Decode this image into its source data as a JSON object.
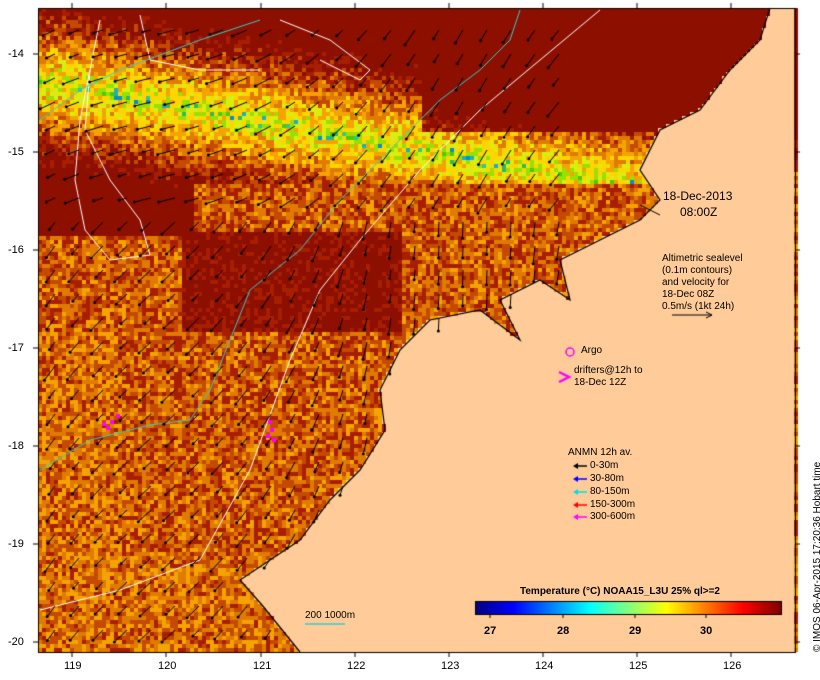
{
  "map": {
    "lon_ticks": [
      "119",
      "120",
      "121",
      "122",
      "123",
      "124",
      "125",
      "126"
    ],
    "lat_ticks": [
      "-14",
      "-15",
      "-16",
      "-17",
      "-18",
      "-19",
      "-20"
    ]
  },
  "timestamp": {
    "date": "18-Dec-2013",
    "time": "08:00Z"
  },
  "altimetry_note": {
    "lines": [
      "Altimetric sealevel",
      "(0.1m contours)",
      "and velocity for",
      "18-Dec 08Z",
      "0.5m/s (1kt 24h)"
    ]
  },
  "legend_argo": {
    "label": "Argo",
    "color": "#ff00ff"
  },
  "legend_drifters": {
    "label_line1": "drifters@12h to",
    "label_line2": "18-Dec 12Z",
    "color": "#ff00ff"
  },
  "anmn": {
    "title": "ANMN 12h av.",
    "items": [
      {
        "label": "0-30m",
        "color": "#000000"
      },
      {
        "label": "30-80m",
        "color": "#0000ff"
      },
      {
        "label": "80-150m",
        "color": "#00e0e0"
      },
      {
        "label": "150-300m",
        "color": "#ff0000"
      },
      {
        "label": "300-600m",
        "color": "#ff00ff"
      }
    ]
  },
  "colorbar": {
    "title": "Temperature (°C) NOAA15_L3U 25% ql>=2",
    "ticks": [
      "27",
      "28",
      "29",
      "30"
    ],
    "colors": [
      "#00007f",
      "#0000ff",
      "#0080ff",
      "#00ffff",
      "#80ff80",
      "#ffff00",
      "#ff8000",
      "#ff0000",
      "#7f0000"
    ]
  },
  "isobath_legend": {
    "label": "200  1000m"
  },
  "credit": "© IMOS 06-Apr-2015 17:20:36 Hobart time",
  "colors": {
    "land": "#ffcc99",
    "contour": "#ffffff",
    "isobath": "#33cccc"
  }
}
